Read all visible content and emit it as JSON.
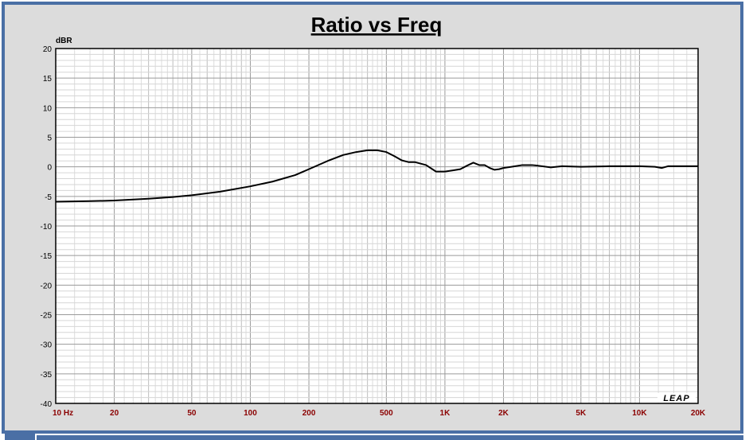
{
  "chart_data": {
    "type": "line",
    "title": "Ratio vs Freq",
    "ylabel": "dBR",
    "xlabel": "",
    "x_scale": "log",
    "xlim": [
      10,
      20000
    ],
    "ylim": [
      -40,
      20
    ],
    "grid": true,
    "y_ticks": [
      "20",
      "15",
      "10",
      "5",
      "0",
      "-5",
      "-10",
      "-15",
      "-20",
      "-25",
      "-30",
      "-35",
      "-40"
    ],
    "x_ticks": [
      {
        "value": 10,
        "label": "10  Hz"
      },
      {
        "value": 20,
        "label": "20"
      },
      {
        "value": 50,
        "label": "50"
      },
      {
        "value": 100,
        "label": "100"
      },
      {
        "value": 200,
        "label": "200"
      },
      {
        "value": 500,
        "label": "500"
      },
      {
        "value": 1000,
        "label": "1K"
      },
      {
        "value": 2000,
        "label": "2K"
      },
      {
        "value": 5000,
        "label": "5K"
      },
      {
        "value": 10000,
        "label": "10K"
      },
      {
        "value": 20000,
        "label": "20K"
      }
    ],
    "series": [
      {
        "color": "#000000",
        "x": [
          10,
          15,
          20,
          30,
          40,
          50,
          70,
          100,
          130,
          170,
          200,
          250,
          300,
          350,
          400,
          450,
          500,
          550,
          600,
          650,
          700,
          800,
          900,
          1000,
          1100,
          1200,
          1300,
          1400,
          1500,
          1600,
          1700,
          1800,
          1900,
          2000,
          2200,
          2500,
          2800,
          3000,
          3500,
          4000,
          5000,
          7000,
          10000,
          12000,
          13000,
          14000,
          20000
        ],
        "y": [
          -5.9,
          -5.8,
          -5.7,
          -5.4,
          -5.1,
          -4.8,
          -4.2,
          -3.3,
          -2.5,
          -1.4,
          -0.4,
          1.0,
          2.0,
          2.5,
          2.8,
          2.8,
          2.5,
          1.8,
          1.1,
          0.8,
          0.8,
          0.3,
          -0.8,
          -0.8,
          -0.6,
          -0.4,
          0.2,
          0.7,
          0.3,
          0.3,
          -0.2,
          -0.5,
          -0.4,
          -0.2,
          0.0,
          0.3,
          0.3,
          0.2,
          -0.1,
          0.1,
          0.0,
          0.1,
          0.1,
          0.0,
          -0.2,
          0.1,
          0.1
        ]
      }
    ],
    "logo": "LEAP"
  }
}
